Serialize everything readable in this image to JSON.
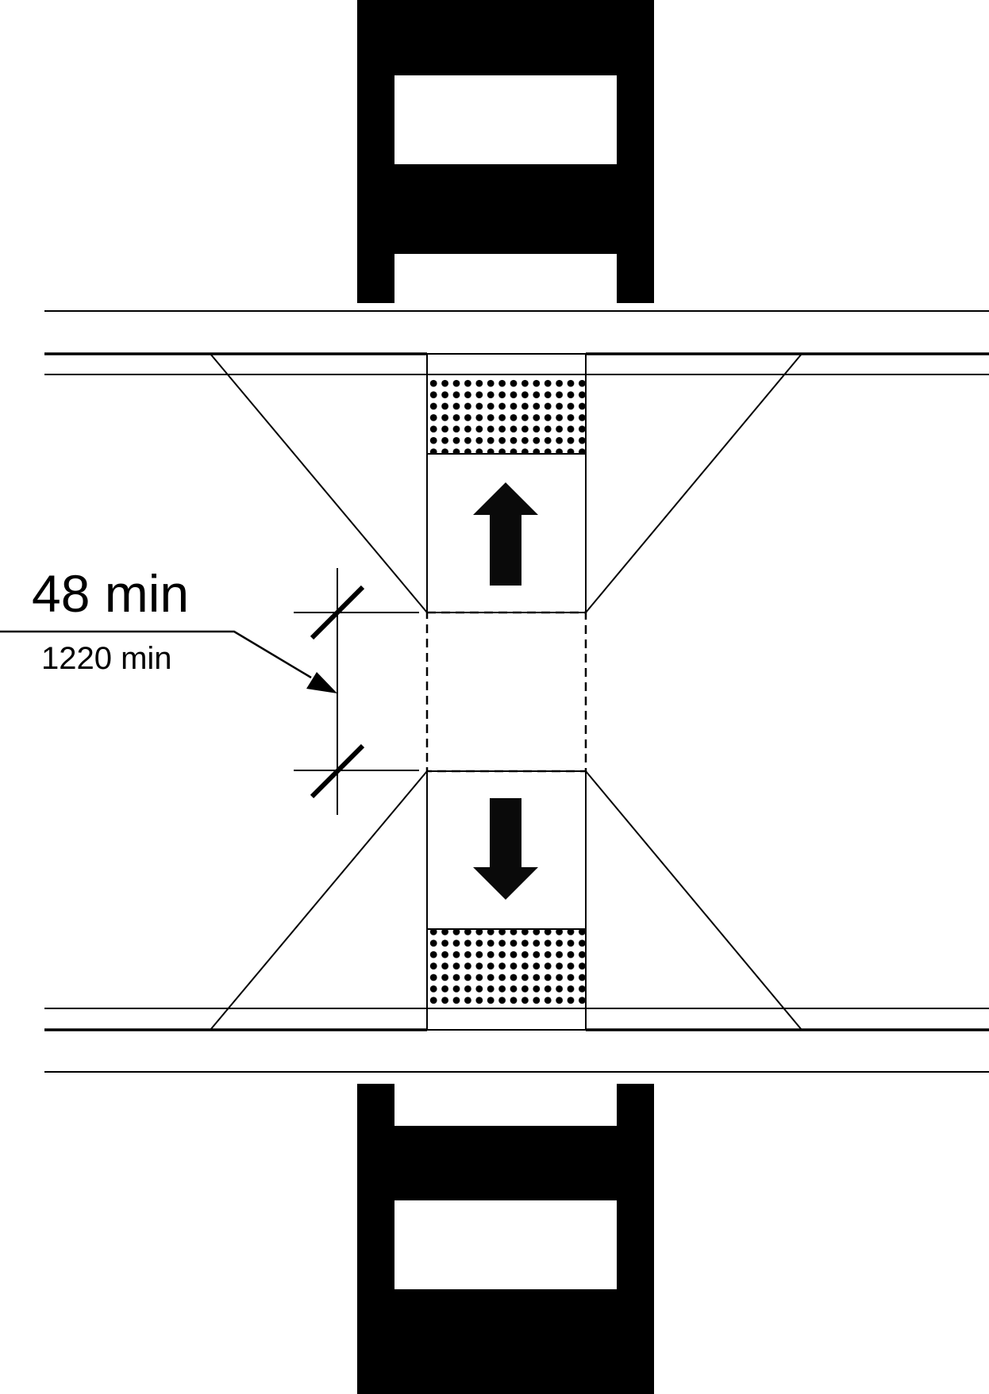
{
  "dimension": {
    "imperial": "48 min",
    "metric": "1220 min"
  },
  "icons": {
    "upper_arrow": "arrow-up-icon",
    "lower_arrow": "arrow-down-icon",
    "upper_vehicle": "vehicle-icon",
    "lower_vehicle": "vehicle-icon"
  },
  "colors": {
    "ink": "#000000",
    "paper": "#ffffff",
    "arrow_fill": "#0a0a0a"
  }
}
